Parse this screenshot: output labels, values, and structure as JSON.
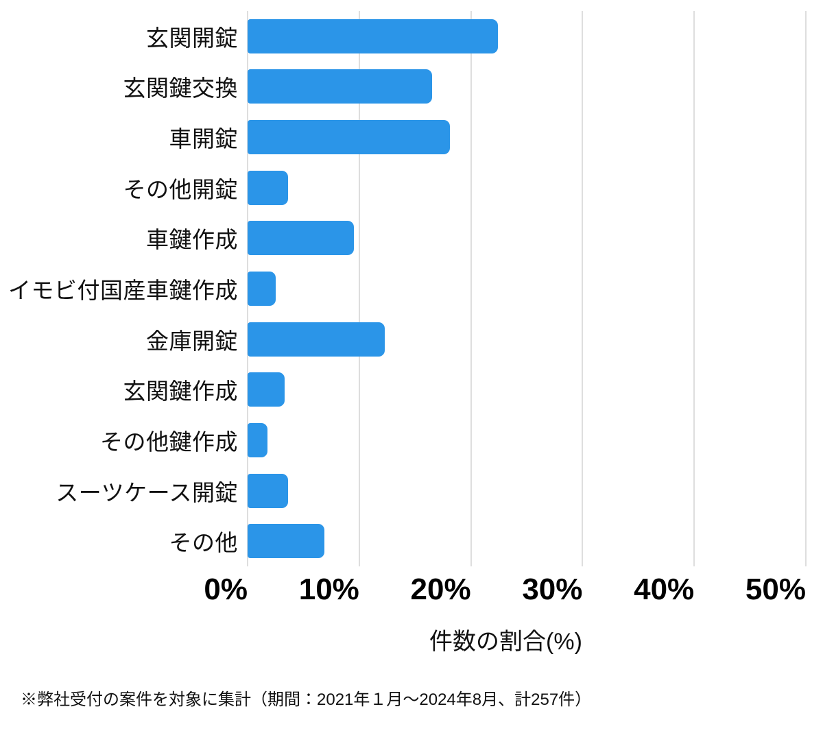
{
  "chart_data": {
    "type": "bar",
    "orientation": "horizontal",
    "title": "",
    "xlabel": "件数の割合(%)",
    "ylabel": "",
    "categories": [
      "玄関開錠",
      "玄関鍵交換",
      "車開錠",
      "その他開錠",
      "車鍵作成",
      "イモビ付国産車鍵作成",
      "金庫開錠",
      "玄関鍵作成",
      "その他鍵作成",
      "スーツケース開錠",
      "その他"
    ],
    "values": [
      22.4,
      16.5,
      18.1,
      3.6,
      9.5,
      2.5,
      12.3,
      3.3,
      1.8,
      3.6,
      6.9
    ],
    "unit": "%",
    "xlim": [
      0,
      50
    ],
    "x_tick_values": [
      0,
      10,
      20,
      30,
      40,
      50
    ],
    "x_tick_labels": [
      "0%",
      "10%",
      "20%",
      "30%",
      "40%",
      "50%"
    ],
    "grid": "vertical-only",
    "legend": "none",
    "bar_color": "#2b95e8",
    "gridline_color": "#dedede",
    "text_color": "#111111"
  },
  "footnote": "※弊社受付の案件を対象に集計（期間：2021年１月～2024年8月、計257件）"
}
